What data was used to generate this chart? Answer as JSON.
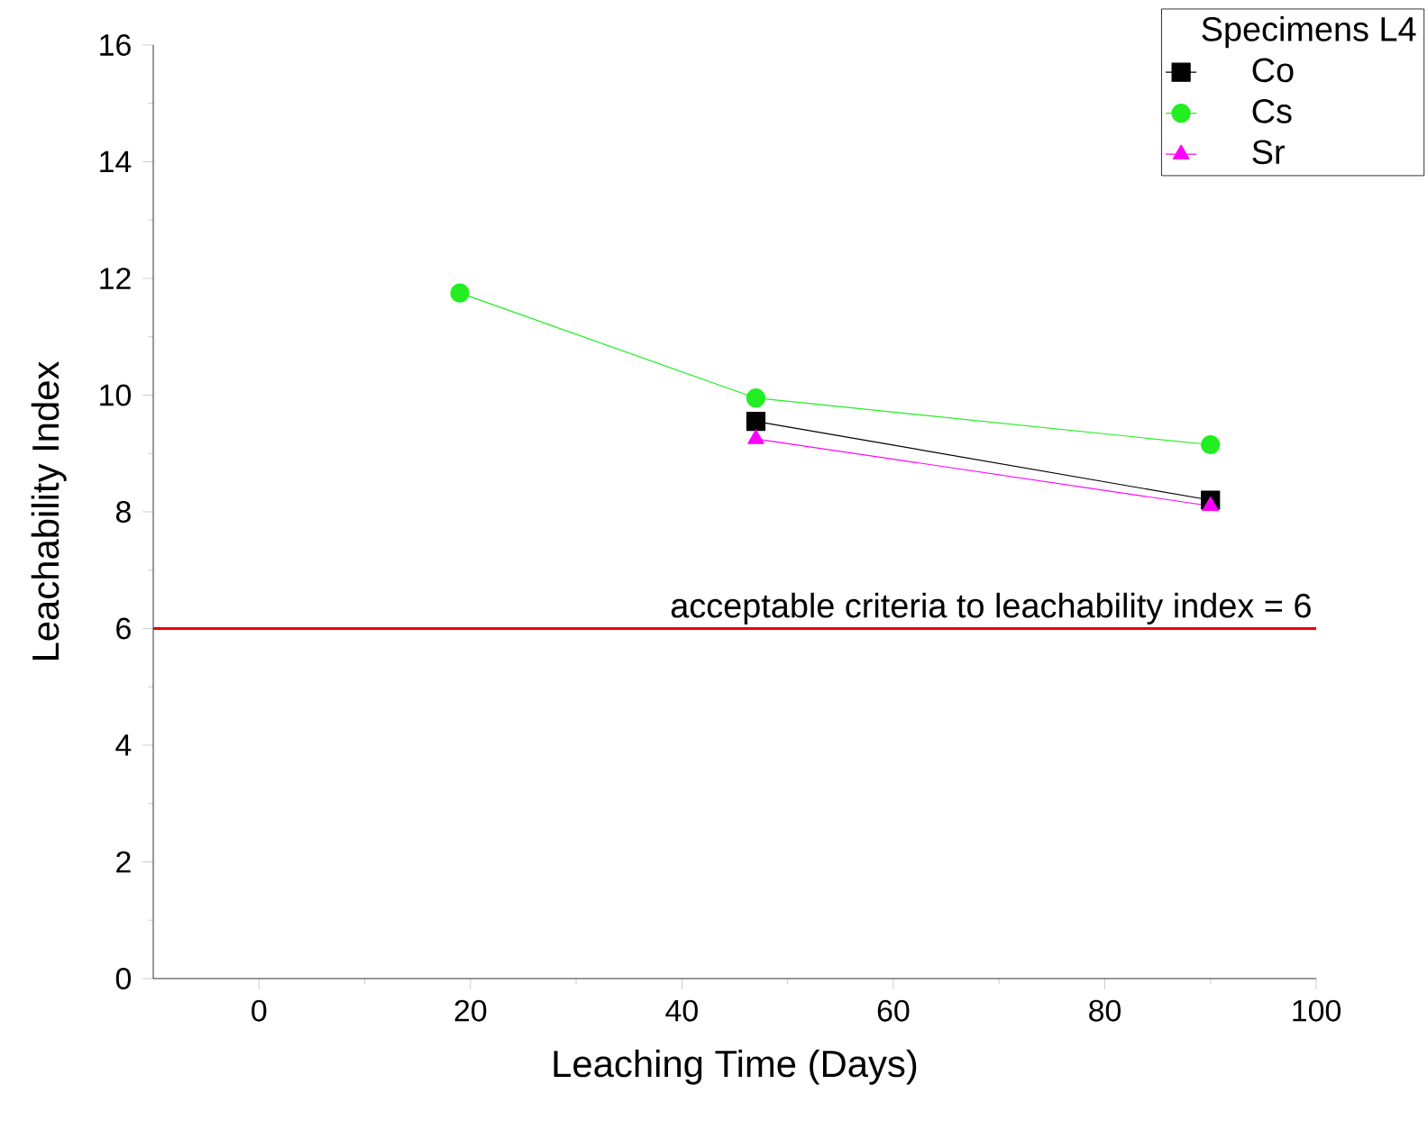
{
  "chart_data": {
    "type": "line",
    "xlabel": "Leaching Time (Days)",
    "ylabel": "Leachability Index",
    "legend_title": "Specimens L4",
    "series": [
      {
        "name": "Co",
        "color": "#000000",
        "marker": "square",
        "x": [
          47,
          90
        ],
        "values": [
          9.55,
          8.2
        ]
      },
      {
        "name": "Cs",
        "color": "#22ee22",
        "marker": "circle",
        "x": [
          19,
          47,
          90
        ],
        "values": [
          11.75,
          9.95,
          9.15
        ]
      },
      {
        "name": "Sr",
        "color": "#ff00ff",
        "marker": "triangle",
        "x": [
          47,
          90
        ],
        "values": [
          9.25,
          8.1
        ]
      }
    ],
    "xlim": [
      -10,
      100
    ],
    "xticks": [
      0,
      20,
      40,
      60,
      80,
      100
    ],
    "ylim": [
      0,
      16
    ],
    "yticks": [
      0,
      2,
      4,
      6,
      8,
      10,
      12,
      14,
      16
    ],
    "ref_lines": [
      {
        "axis": "y",
        "value": 6,
        "label": "acceptable criteria to leachability index = 6",
        "color": "#ee0000"
      }
    ],
    "grid": false,
    "legend": "top right"
  }
}
